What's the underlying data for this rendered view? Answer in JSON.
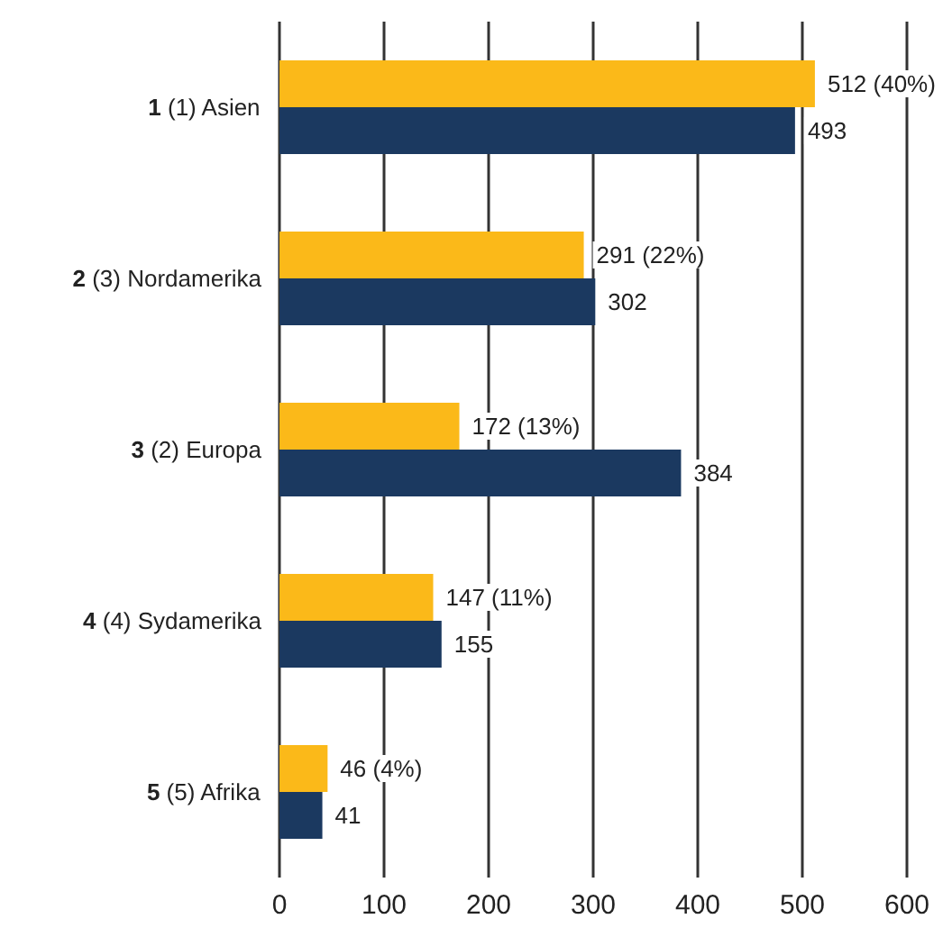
{
  "chart_data": {
    "type": "bar",
    "orientation": "horizontal",
    "categories": [
      "1 (1) Asien",
      "2 (3) Nordamerika",
      "3 (2) Europa",
      "4 (4) Sydamerika",
      "5 (5) Afrika"
    ],
    "series": [
      {
        "color": "#fbb919",
        "values": [
          512,
          291,
          172,
          147,
          46
        ],
        "value_labels": [
          "512 (40%)",
          "291 (22%)",
          "172 (13%)",
          "147 (11%)",
          "46 (4%)"
        ]
      },
      {
        "color": "#1b3960",
        "values": [
          493,
          302,
          384,
          155,
          41
        ],
        "value_labels": [
          "493",
          "302",
          "384",
          "155",
          "41"
        ]
      }
    ],
    "xlim": [
      0,
      600
    ],
    "xticks": [
      0,
      100,
      200,
      300,
      400,
      500,
      600
    ],
    "grid": "x"
  }
}
